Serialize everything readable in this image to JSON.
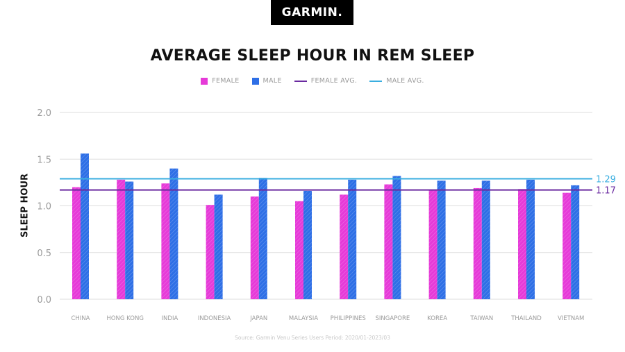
{
  "brand": "GARMIN.",
  "source_text": "Source: Garmin Venu Series Users     Period: 2020/01-2023/03",
  "colors": {
    "female": "#e63ad8",
    "male": "#2e6fe6",
    "female_avg": "#6a2aa0",
    "male_avg": "#3aaee0",
    "grid": "#dddddd",
    "tick": "#9a9a9a"
  },
  "chart_data": {
    "type": "bar",
    "title": "AVERAGE SLEEP HOUR IN REM SLEEP",
    "xlabel": "",
    "ylabel": "SLEEP HOUR",
    "ylim": [
      0,
      2.0
    ],
    "yticks": [
      "0.0",
      "0.5",
      "1.0",
      "1.5",
      "2.0"
    ],
    "grid": true,
    "legend_placement": "top-center",
    "legend": [
      "FEMALE",
      "MALE",
      "FEMALE AVG.",
      "MALE AVG."
    ],
    "categories": [
      "CHINA",
      "HONG KONG",
      "INDIA",
      "INDONESIA",
      "JAPAN",
      "MALAYSIA",
      "PHILIPPINES",
      "SINGAPORE",
      "KOREA",
      "TAIWAN",
      "THAILAND",
      "VIETNAM"
    ],
    "series": [
      {
        "name": "FEMALE",
        "values": [
          1.2,
          1.28,
          1.24,
          1.01,
          1.1,
          1.05,
          1.12,
          1.23,
          1.17,
          1.19,
          1.18,
          1.14
        ]
      },
      {
        "name": "MALE",
        "values": [
          1.56,
          1.26,
          1.4,
          1.12,
          1.3,
          1.16,
          1.28,
          1.32,
          1.27,
          1.27,
          1.28,
          1.22
        ]
      }
    ],
    "reference_lines": [
      {
        "name": "FEMALE AVG.",
        "value": 1.17,
        "label": "1.17"
      },
      {
        "name": "MALE AVG.",
        "value": 1.29,
        "label": "1.29"
      }
    ]
  }
}
